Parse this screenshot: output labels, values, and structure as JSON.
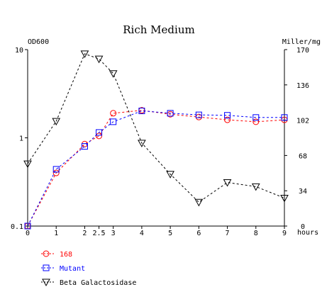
{
  "chart_data": {
    "type": "line",
    "title": "Rich Medium",
    "xlabel": "hours",
    "ylabel_left": "OD600",
    "ylabel_right": "Miller/mg",
    "left_axis": {
      "scale": "log",
      "ylim": [
        0.1,
        10
      ],
      "ticks": [
        0.1,
        1,
        10
      ],
      "tick_labels": [
        "0.1",
        "1",
        "10"
      ]
    },
    "right_axis": {
      "scale": "linear",
      "ylim": [
        0,
        170
      ],
      "ticks": [
        0,
        34,
        68,
        102,
        136,
        170
      ],
      "tick_labels": [
        "0",
        "34",
        "68",
        "102",
        "136",
        "170"
      ]
    },
    "x_axis": {
      "xlim": [
        0,
        9
      ],
      "ticks": [
        0,
        1,
        2,
        2.5,
        3,
        4,
        5,
        6,
        7,
        8,
        9
      ],
      "tick_labels": [
        "0",
        "1",
        "2",
        "2.5",
        "3",
        "4",
        "5",
        "6",
        "7",
        "8",
        "9"
      ]
    },
    "grid": false,
    "legend_position": "bottom-left",
    "series": [
      {
        "name": "168",
        "axis": "left",
        "marker": "circle",
        "color": "#ff0000",
        "x": [
          0,
          1,
          2,
          2.5,
          3,
          4,
          5,
          6,
          7,
          8,
          9
        ],
        "y": [
          0.1,
          0.4,
          0.85,
          1.05,
          1.9,
          2.05,
          1.85,
          1.72,
          1.6,
          1.52,
          1.6
        ]
      },
      {
        "name": "Mutant",
        "axis": "left",
        "marker": "square",
        "color": "#0000ff",
        "x": [
          0,
          1,
          2,
          2.5,
          3,
          4,
          5,
          6,
          7,
          8,
          9
        ],
        "y": [
          0.1,
          0.44,
          0.8,
          1.15,
          1.52,
          2.02,
          1.9,
          1.82,
          1.8,
          1.7,
          1.7
        ]
      },
      {
        "name": "Beta Galactosidase",
        "axis": "right",
        "marker": "triangle-down",
        "color": "#000000",
        "x": [
          0,
          1,
          2,
          2.5,
          3,
          4,
          5,
          6,
          7,
          8,
          9
        ],
        "y": [
          60,
          101,
          166,
          161,
          147,
          80,
          50,
          23,
          42,
          38,
          27
        ]
      }
    ]
  }
}
